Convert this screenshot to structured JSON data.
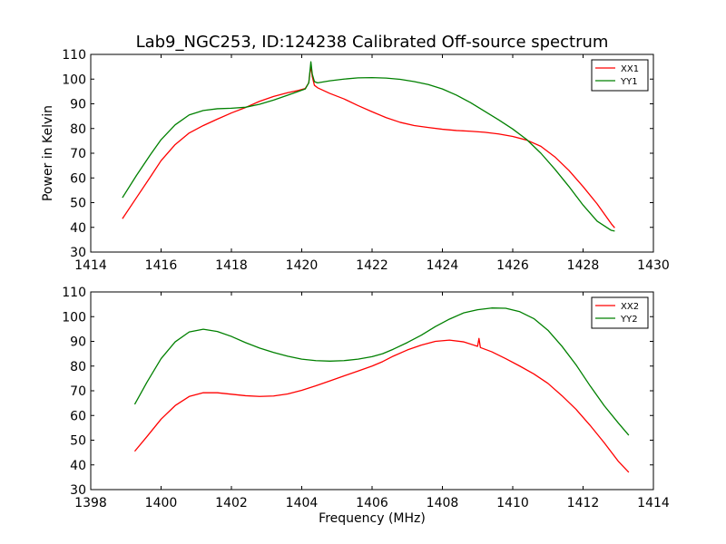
{
  "chart_data": [
    {
      "type": "line",
      "title": "Lab9_NGC253, ID:124238 Calibrated Off-source spectrum",
      "xlabel": "",
      "ylabel": "Power in Kelvin",
      "xlim": [
        1414,
        1430
      ],
      "ylim": [
        30,
        110
      ],
      "xticks": [
        1414,
        1416,
        1418,
        1420,
        1422,
        1424,
        1426,
        1428,
        1430
      ],
      "yticks": [
        30,
        40,
        50,
        60,
        70,
        80,
        90,
        100,
        110
      ],
      "legend_position": "top-right",
      "series": [
        {
          "name": "XX1",
          "color": "#ff0000",
          "x": [
            1414.9,
            1415.3,
            1415.7,
            1416.0,
            1416.4,
            1416.8,
            1417.2,
            1417.6,
            1418.0,
            1418.4,
            1418.8,
            1419.2,
            1419.6,
            1419.9,
            1420.1,
            1420.2,
            1420.26,
            1420.3,
            1420.36,
            1420.45,
            1420.8,
            1421.2,
            1421.6,
            1422.0,
            1422.4,
            1422.8,
            1423.2,
            1423.6,
            1424.0,
            1424.4,
            1424.8,
            1425.2,
            1425.6,
            1426.0,
            1426.4,
            1426.8,
            1427.2,
            1427.6,
            1428.0,
            1428.4,
            1428.8,
            1428.9
          ],
          "values": [
            43.5,
            52,
            60.5,
            67,
            73.5,
            78.2,
            81.2,
            83.8,
            86.3,
            88.5,
            91,
            93,
            94.5,
            95.4,
            96.2,
            98.5,
            105.5,
            101,
            97.5,
            96.5,
            94.2,
            92,
            89.3,
            86.8,
            84.4,
            82.5,
            81.2,
            80.4,
            79.7,
            79.2,
            78.9,
            78.5,
            77.8,
            76.8,
            75.3,
            72.8,
            68.5,
            63,
            56.5,
            49.5,
            41.5,
            39.8
          ]
        },
        {
          "name": "YY1",
          "color": "#008000",
          "x": [
            1414.9,
            1415.3,
            1415.7,
            1416.0,
            1416.4,
            1416.8,
            1417.2,
            1417.6,
            1418.0,
            1418.4,
            1418.8,
            1419.2,
            1419.6,
            1419.9,
            1420.1,
            1420.2,
            1420.26,
            1420.3,
            1420.36,
            1420.45,
            1420.8,
            1421.2,
            1421.6,
            1422.0,
            1422.4,
            1422.8,
            1423.2,
            1423.6,
            1424.0,
            1424.4,
            1424.8,
            1425.2,
            1425.6,
            1426.0,
            1426.4,
            1426.8,
            1427.2,
            1427.6,
            1428.0,
            1428.4,
            1428.8,
            1428.9
          ],
          "values": [
            52,
            61,
            69.5,
            75.5,
            81.5,
            85.5,
            87.3,
            88,
            88.2,
            88.6,
            89.8,
            91.5,
            93.5,
            95,
            96,
            98.5,
            107,
            102,
            99,
            98.5,
            99.3,
            100,
            100.5,
            100.6,
            100.4,
            99.9,
            99,
            97.8,
            96,
            93.5,
            90.5,
            87,
            83.5,
            79.8,
            75.5,
            70,
            63.5,
            56.5,
            49,
            42.5,
            38.8,
            38.5
          ]
        }
      ]
    },
    {
      "type": "line",
      "title": "",
      "xlabel": "Frequency (MHz)",
      "ylabel": "",
      "xlim": [
        1398,
        1414
      ],
      "ylim": [
        30,
        110
      ],
      "xticks": [
        1398,
        1400,
        1402,
        1404,
        1406,
        1408,
        1410,
        1412,
        1414
      ],
      "yticks": [
        30,
        40,
        50,
        60,
        70,
        80,
        90,
        100,
        110
      ],
      "legend_position": "top-right",
      "series": [
        {
          "name": "XX2",
          "color": "#ff0000",
          "x": [
            1399.25,
            1399.6,
            1400.0,
            1400.4,
            1400.8,
            1401.2,
            1401.6,
            1402.0,
            1402.4,
            1402.8,
            1403.2,
            1403.6,
            1404.0,
            1404.4,
            1404.8,
            1405.2,
            1405.6,
            1406.0,
            1406.3,
            1406.6,
            1407.0,
            1407.4,
            1407.8,
            1408.2,
            1408.6,
            1409.0,
            1409.04,
            1409.08,
            1409.4,
            1409.8,
            1410.2,
            1410.6,
            1411.0,
            1411.4,
            1411.8,
            1412.2,
            1412.6,
            1413.0,
            1413.3
          ],
          "values": [
            45.5,
            51.5,
            58.5,
            64,
            67.7,
            69.2,
            69.2,
            68.6,
            68,
            67.7,
            67.9,
            68.7,
            70.2,
            72,
            74,
            76,
            78,
            80,
            81.8,
            84,
            86.5,
            88.5,
            90,
            90.5,
            89.8,
            88,
            91.2,
            87.5,
            85.8,
            83,
            80,
            76.8,
            73,
            68,
            62.5,
            56,
            49,
            41.5,
            37
          ]
        },
        {
          "name": "YY2",
          "color": "#008000",
          "x": [
            1399.25,
            1399.6,
            1400.0,
            1400.4,
            1400.8,
            1401.2,
            1401.6,
            1402.0,
            1402.4,
            1402.8,
            1403.2,
            1403.6,
            1404.0,
            1404.4,
            1404.8,
            1405.2,
            1405.6,
            1406.0,
            1406.3,
            1406.6,
            1407.0,
            1407.4,
            1407.8,
            1408.2,
            1408.6,
            1409.0,
            1409.4,
            1409.8,
            1410.2,
            1410.6,
            1411.0,
            1411.4,
            1411.8,
            1412.2,
            1412.6,
            1413.0,
            1413.3
          ],
          "values": [
            64.5,
            73.5,
            83,
            89.8,
            93.8,
            94.9,
            94,
            92,
            89.5,
            87.3,
            85.5,
            84,
            82.8,
            82.2,
            82,
            82.2,
            82.8,
            83.8,
            85,
            86.8,
            89.5,
            92.5,
            96,
            99,
            101.5,
            102.8,
            103.5,
            103.4,
            102,
            99.2,
            94.5,
            88,
            80.5,
            72,
            64,
            57,
            52
          ]
        }
      ]
    }
  ]
}
